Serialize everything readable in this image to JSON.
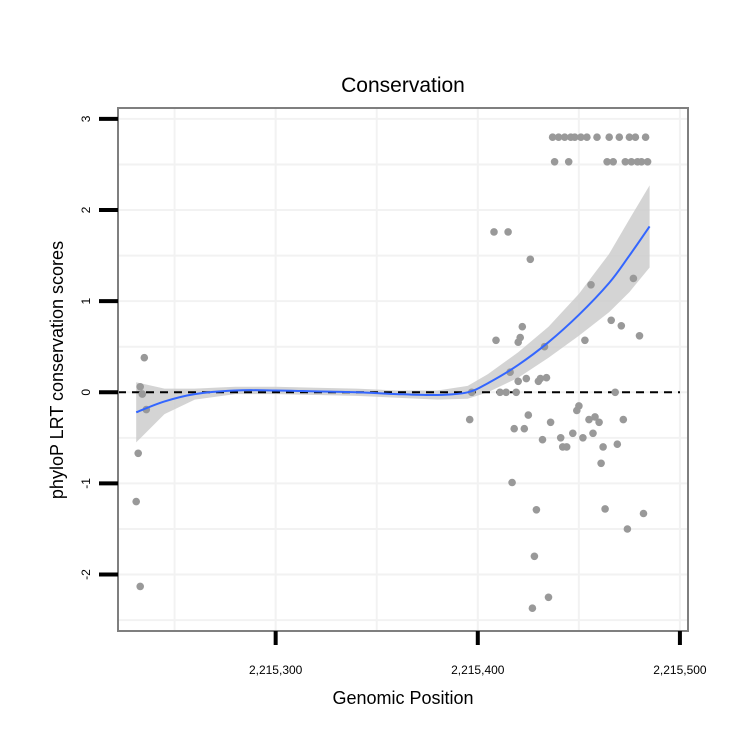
{
  "chart_data": {
    "type": "scatter",
    "title": "Conservation",
    "xlabel": "Genomic Position",
    "ylabel": "phyloP LRT conservation scores",
    "xlim": [
      2215222,
      2215504
    ],
    "ylim": [
      -2.62,
      3.12
    ],
    "x_ticks": [
      2215300,
      2215400,
      2215500
    ],
    "x_tick_labels": [
      "2,215,300",
      "2,215,400",
      "2,215,500"
    ],
    "y_ticks": [
      -2,
      -1,
      0,
      1,
      2,
      3
    ],
    "y_tick_labels": [
      "-2",
      "-1",
      "0",
      "1",
      "2",
      "3"
    ],
    "grid": true,
    "reference_line": {
      "y": 0,
      "style": "dashed",
      "color": "#000000"
    },
    "colors": {
      "points": "#999999",
      "smooth_line": "#3366ff",
      "confidence_band": "#cccccc",
      "panel_border": "#7f7f7f",
      "grid": "#f2f2f2"
    },
    "points": [
      [
        2215231,
        -1.2
      ],
      [
        2215232,
        -0.67
      ],
      [
        2215233,
        -2.13
      ],
      [
        2215233,
        0.06
      ],
      [
        2215234,
        -0.02
      ],
      [
        2215235,
        0.38
      ],
      [
        2215236,
        -0.19
      ],
      [
        2215396,
        -0.3
      ],
      [
        2215397,
        0.0
      ],
      [
        2215408,
        1.76
      ],
      [
        2215409,
        0.57
      ],
      [
        2215411,
        0.0
      ],
      [
        2215414,
        0.0
      ],
      [
        2215415,
        1.76
      ],
      [
        2215416,
        0.22
      ],
      [
        2215417,
        -0.99
      ],
      [
        2215418,
        -0.4
      ],
      [
        2215419,
        0.0
      ],
      [
        2215420,
        0.12
      ],
      [
        2215420,
        0.55
      ],
      [
        2215421,
        0.6
      ],
      [
        2215422,
        0.72
      ],
      [
        2215423,
        -0.4
      ],
      [
        2215424,
        0.15
      ],
      [
        2215425,
        -0.25
      ],
      [
        2215426,
        1.46
      ],
      [
        2215427,
        -2.37
      ],
      [
        2215428,
        -1.8
      ],
      [
        2215429,
        -1.29
      ],
      [
        2215430,
        0.12
      ],
      [
        2215431,
        0.15
      ],
      [
        2215432,
        -0.52
      ],
      [
        2215433,
        0.5
      ],
      [
        2215434,
        0.16
      ],
      [
        2215435,
        -2.25
      ],
      [
        2215436,
        -0.33
      ],
      [
        2215437,
        2.8
      ],
      [
        2215438,
        2.53
      ],
      [
        2215440,
        2.8
      ],
      [
        2215441,
        -0.5
      ],
      [
        2215442,
        -0.6
      ],
      [
        2215443,
        2.8
      ],
      [
        2215444,
        -0.6
      ],
      [
        2215445,
        2.53
      ],
      [
        2215446,
        2.8
      ],
      [
        2215447,
        -0.45
      ],
      [
        2215448,
        2.8
      ],
      [
        2215449,
        -0.2
      ],
      [
        2215450,
        -0.15
      ],
      [
        2215451,
        2.8
      ],
      [
        2215452,
        -0.5
      ],
      [
        2215453,
        0.57
      ],
      [
        2215454,
        2.8
      ],
      [
        2215455,
        -0.3
      ],
      [
        2215456,
        1.18
      ],
      [
        2215457,
        -0.45
      ],
      [
        2215458,
        -0.27
      ],
      [
        2215459,
        2.8
      ],
      [
        2215460,
        -0.33
      ],
      [
        2215461,
        -0.78
      ],
      [
        2215462,
        -0.6
      ],
      [
        2215463,
        -1.28
      ],
      [
        2215464,
        2.53
      ],
      [
        2215465,
        2.8
      ],
      [
        2215466,
        0.79
      ],
      [
        2215467,
        2.53
      ],
      [
        2215468,
        0.0
      ],
      [
        2215469,
        -0.57
      ],
      [
        2215470,
        2.8
      ],
      [
        2215471,
        0.73
      ],
      [
        2215472,
        -0.3
      ],
      [
        2215473,
        2.53
      ],
      [
        2215474,
        -1.5
      ],
      [
        2215475,
        2.8
      ],
      [
        2215476,
        2.53
      ],
      [
        2215477,
        1.25
      ],
      [
        2215478,
        2.8
      ],
      [
        2215479,
        2.53
      ],
      [
        2215480,
        0.62
      ],
      [
        2215481,
        2.53
      ],
      [
        2215482,
        -1.33
      ],
      [
        2215483,
        2.8
      ],
      [
        2215484,
        2.53
      ]
    ],
    "smooth_fit": {
      "method": "loess-like smoother with 95% confidence band",
      "x": [
        2215231,
        2215245,
        2215260,
        2215280,
        2215300,
        2215320,
        2215340,
        2215360,
        2215380,
        2215395,
        2215405,
        2215420,
        2215435,
        2215450,
        2215465,
        2215475,
        2215485
      ],
      "y": [
        -0.22,
        -0.1,
        -0.02,
        0.02,
        0.02,
        0.01,
        0.0,
        -0.02,
        -0.03,
        0.0,
        0.1,
        0.3,
        0.55,
        0.85,
        1.2,
        1.5,
        1.82
      ],
      "lower": [
        -0.55,
        -0.24,
        -0.08,
        -0.02,
        -0.02,
        -0.03,
        -0.04,
        -0.06,
        -0.08,
        -0.07,
        0.0,
        0.16,
        0.38,
        0.62,
        0.88,
        1.1,
        1.37
      ],
      "upper": [
        0.11,
        0.04,
        0.04,
        0.06,
        0.06,
        0.05,
        0.04,
        0.02,
        0.02,
        0.07,
        0.2,
        0.44,
        0.72,
        1.08,
        1.52,
        1.9,
        2.27
      ]
    }
  }
}
